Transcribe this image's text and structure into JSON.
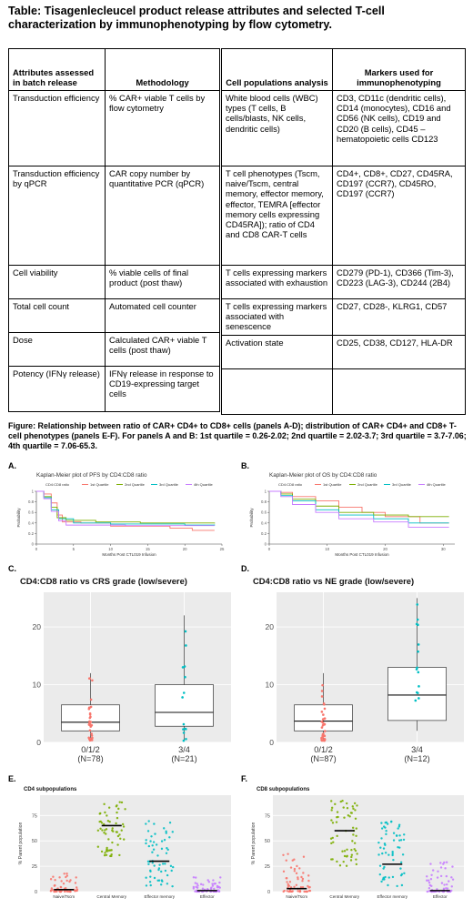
{
  "title": "Table: Tisagenlecleucel product release attributes and selected T-cell characterization by immunophenotyping by flow cytometry.",
  "table1": {
    "headers": [
      "Attributes assessed in batch release",
      "Methodology"
    ],
    "rows": [
      [
        "Transduction efficiency",
        "% CAR+ viable T cells by flow cytometry"
      ],
      [
        "Transduction efficiency by qPCR",
        "CAR copy number by quantitative PCR (qPCR)"
      ],
      [
        "Cell viability",
        "% viable cells of final product (post thaw)"
      ],
      [
        "Total cell count",
        "Automated cell counter"
      ],
      [
        "Dose",
        "Calculated CAR+ viable T cells (post thaw)"
      ],
      [
        "Potency (IFNγ release)",
        "IFNγ release in response to CD19-expressing target cells"
      ]
    ]
  },
  "table2": {
    "headers": [
      "Cell populations analysis",
      "Markers used for immunophenotyping"
    ],
    "rows": [
      [
        "White blood cells (WBC) types (T cells, B cells/blasts, NK cells, dendritic cells)",
        "CD3, CD11c (dendritic cells), CD14 (monocytes), CD16 and CD56 (NK cells), CD19 and CD20 (B cells), CD45 – hematopoietic cells CD123"
      ],
      [
        "T cell phenotypes (Tscm, naive/Tscm, central memory, effector memory, effector, TEMRA [effector memory cells expressing CD45RA]); ratio of CD4 and CD8 CAR-T cells",
        "CD4+, CD8+, CD27, CD45RA, CD197 (CCR7), CD45RO, CD197 (CCR7)"
      ],
      [
        "T cells expressing markers associated with exhaustion",
        "CD279 (PD-1), CD366 (Tim-3), CD223 (LAG-3), CD244 (2B4)"
      ],
      [
        "T cells expressing markers associated with senescence",
        "CD27, CD28-, KLRG1, CD57"
      ],
      [
        "Activation state",
        "CD25, CD38, CD127, HLA-DR"
      ],
      [
        "",
        ""
      ]
    ]
  },
  "figure_caption": "Figure: Relationship between ratio of CAR+ CD4+ to CD8+ cells (panels A-D); distribution of CAR+ CD4+ and CD8+ T-cell phenotypes (panels E-F). For panels A and B: 1st quartile = 0.26-2.02; 2nd quartile = 2.02-3.7; 3rd quartile = 3.7-7.06; 4th quartile = 7.06-65.3.",
  "panel_labels": {
    "a": "A.",
    "b": "B.",
    "c": "C.",
    "d": "D.",
    "e": "E.",
    "f": "F."
  },
  "colors": {
    "q1": "#F8766D",
    "q2": "#7CAE00",
    "q3": "#00BFC4",
    "q4": "#C77CFF",
    "panel_bg": "#EBEBEB"
  },
  "chart_data": [
    {
      "id": "A",
      "type": "line",
      "title": "Kaplan-Meier plot of PFS by CD4:CD8 ratio",
      "xlabel": "Months Post CTL019 Infusion",
      "ylabel": "Probability",
      "legend_title": "CD4:CD8 ratio",
      "legend_position": "top",
      "xlim": [
        0,
        25
      ],
      "ylim": [
        0,
        1
      ],
      "xticks": [
        0,
        5,
        10,
        15,
        20,
        25
      ],
      "yticks": [
        0,
        0.2,
        0.4,
        0.6,
        0.8,
        1
      ],
      "series": [
        {
          "name": "1st Quartile",
          "points": [
            [
              0,
              1
            ],
            [
              1,
              0.95
            ],
            [
              2,
              0.78
            ],
            [
              2.8,
              0.55
            ],
            [
              3.5,
              0.42
            ],
            [
              6,
              0.4
            ],
            [
              10,
              0.34
            ],
            [
              18,
              0.3
            ],
            [
              21,
              0.26
            ],
            [
              24,
              0.26
            ]
          ]
        },
        {
          "name": "2nd Quartile",
          "points": [
            [
              0,
              1
            ],
            [
              1,
              0.9
            ],
            [
              2,
              0.7
            ],
            [
              2.8,
              0.5
            ],
            [
              4,
              0.45
            ],
            [
              8,
              0.42
            ],
            [
              14,
              0.4
            ],
            [
              24,
              0.39
            ]
          ]
        },
        {
          "name": "3rd Quartile",
          "points": [
            [
              0,
              1
            ],
            [
              1,
              0.88
            ],
            [
              2,
              0.65
            ],
            [
              3,
              0.48
            ],
            [
              5,
              0.4
            ],
            [
              10,
              0.38
            ],
            [
              20,
              0.36
            ],
            [
              24,
              0.37
            ]
          ]
        },
        {
          "name": "4th Quartile",
          "points": [
            [
              0,
              1
            ],
            [
              1,
              0.86
            ],
            [
              2,
              0.62
            ],
            [
              3,
              0.44
            ],
            [
              4,
              0.36
            ],
            [
              12,
              0.35
            ],
            [
              24,
              0.35
            ]
          ]
        }
      ]
    },
    {
      "id": "B",
      "type": "line",
      "title": "Kaplan-Meier plot of OS by CD4:CD8 ratio",
      "xlabel": "Months Post CTL019 Infusion",
      "ylabel": "Probability",
      "legend_title": "CD4:CD8 ratio",
      "legend_position": "top",
      "xlim": [
        0,
        32
      ],
      "ylim": [
        0,
        1
      ],
      "xticks": [
        0,
        10,
        20,
        30
      ],
      "yticks": [
        0,
        0.2,
        0.4,
        0.6,
        0.8,
        1
      ],
      "series": [
        {
          "name": "1st Quartile",
          "points": [
            [
              0,
              1
            ],
            [
              2,
              0.98
            ],
            [
              4,
              0.9
            ],
            [
              8,
              0.82
            ],
            [
              12,
              0.7
            ],
            [
              16,
              0.6
            ],
            [
              20,
              0.52
            ],
            [
              26,
              0.4
            ],
            [
              31,
              0.4
            ]
          ]
        },
        {
          "name": "2nd Quartile",
          "points": [
            [
              0,
              1
            ],
            [
              2,
              0.95
            ],
            [
              4,
              0.85
            ],
            [
              8,
              0.72
            ],
            [
              12,
              0.6
            ],
            [
              18,
              0.55
            ],
            [
              24,
              0.52
            ],
            [
              31,
              0.52
            ]
          ]
        },
        {
          "name": "3rd Quartile",
          "points": [
            [
              0,
              1
            ],
            [
              2,
              0.92
            ],
            [
              4,
              0.82
            ],
            [
              8,
              0.65
            ],
            [
              12,
              0.55
            ],
            [
              18,
              0.48
            ],
            [
              24,
              0.4
            ],
            [
              31,
              0.4
            ]
          ]
        },
        {
          "name": "4th Quartile",
          "points": [
            [
              0,
              1
            ],
            [
              2,
              0.9
            ],
            [
              4,
              0.75
            ],
            [
              8,
              0.6
            ],
            [
              12,
              0.48
            ],
            [
              18,
              0.42
            ],
            [
              24,
              0.32
            ],
            [
              31,
              0.32
            ]
          ]
        }
      ]
    },
    {
      "id": "C",
      "type": "box",
      "title": "CD4:CD8 ratio vs CRS grade (low/severe)",
      "ylim": [
        0,
        26
      ],
      "yticks": [
        0,
        10,
        20
      ],
      "categories": [
        "0/1/2\n(N=78)",
        "3/4\n(N=21)"
      ],
      "boxes": [
        {
          "q1": 2,
          "median": 3.5,
          "q3": 6.5,
          "min": 0.3,
          "max": 12
        },
        {
          "q1": 2.8,
          "median": 5.2,
          "q3": 10,
          "min": 0.3,
          "max": 22
        }
      ]
    },
    {
      "id": "D",
      "type": "box",
      "title": "CD4:CD8 ratio vs NE grade (low/severe)",
      "ylim": [
        0,
        26
      ],
      "yticks": [
        0,
        10,
        20
      ],
      "categories": [
        "0/1/2\n(N=87)",
        "3/4\n(N=12)"
      ],
      "boxes": [
        {
          "q1": 2,
          "median": 3.7,
          "q3": 6.5,
          "min": 0.3,
          "max": 12
        },
        {
          "q1": 3.8,
          "median": 8.2,
          "q3": 13,
          "min": 2,
          "max": 25
        }
      ]
    },
    {
      "id": "E",
      "type": "scatter",
      "title": "CD4 subpopulations",
      "ylabel": "% Parent population",
      "ylim": [
        0,
        95
      ],
      "yticks": [
        0,
        25,
        50,
        75
      ],
      "categories": [
        "Naive/Tscm",
        "Central Memory",
        "Effector memory",
        "Effector"
      ],
      "medians": [
        2,
        65,
        30,
        1
      ],
      "spreads": [
        [
          0,
          20
        ],
        [
          35,
          90
        ],
        [
          5,
          70
        ],
        [
          0,
          15
        ]
      ]
    },
    {
      "id": "F",
      "type": "scatter",
      "title": "CD8 subpopulations",
      "ylabel": "% Parent population",
      "ylim": [
        0,
        95
      ],
      "yticks": [
        0,
        25,
        50,
        75
      ],
      "categories": [
        "Naive/Tscm",
        "Central Memory",
        "Effector memory",
        "Effector"
      ],
      "medians": [
        3,
        60,
        27,
        1
      ],
      "spreads": [
        [
          0,
          40
        ],
        [
          25,
          90
        ],
        [
          5,
          70
        ],
        [
          0,
          30
        ]
      ]
    }
  ]
}
